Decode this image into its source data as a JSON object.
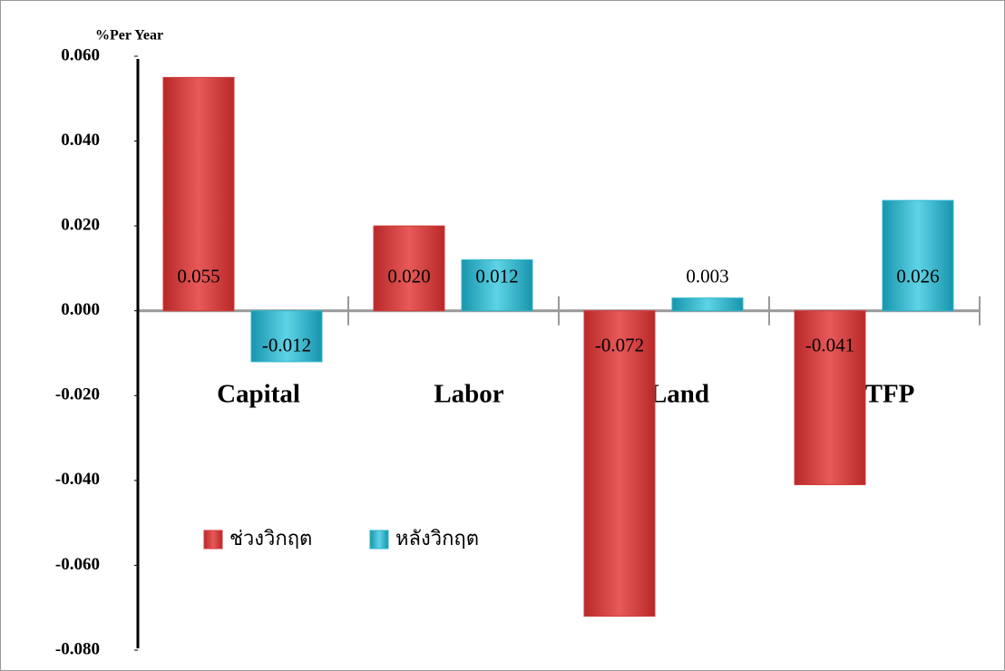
{
  "chart_data": {
    "type": "bar",
    "y_axis_label": "%Per Year",
    "categories": [
      "Capital",
      "Labor",
      "Land",
      "TFP"
    ],
    "series": [
      {
        "name": "ช่วงวิกฤต",
        "color": "#d23b3b",
        "values": [
          0.055,
          0.02,
          -0.072,
          -0.041
        ],
        "value_labels": [
          "0.055",
          "0.020",
          "-0.072",
          "-0.041"
        ]
      },
      {
        "name": "หลังวิกฤต",
        "color": "#2cb4cc",
        "values": [
          -0.012,
          0.012,
          0.003,
          0.026
        ],
        "value_labels": [
          "-0.012",
          "0.012",
          "0.003",
          "0.026"
        ]
      }
    ],
    "ylim": [
      -0.08,
      0.06
    ],
    "yticks": [
      {
        "value": 0.06,
        "label": "0.060"
      },
      {
        "value": 0.04,
        "label": "0.040"
      },
      {
        "value": 0.02,
        "label": "0.020"
      },
      {
        "value": 0,
        "label": "0.000"
      },
      {
        "value": -0.02,
        "label": "-0.020"
      },
      {
        "value": -0.04,
        "label": "-0.040"
      },
      {
        "value": -0.06,
        "label": "-0.060"
      },
      {
        "value": -0.08,
        "label": "-0.080"
      }
    ],
    "legend": "lower left"
  }
}
